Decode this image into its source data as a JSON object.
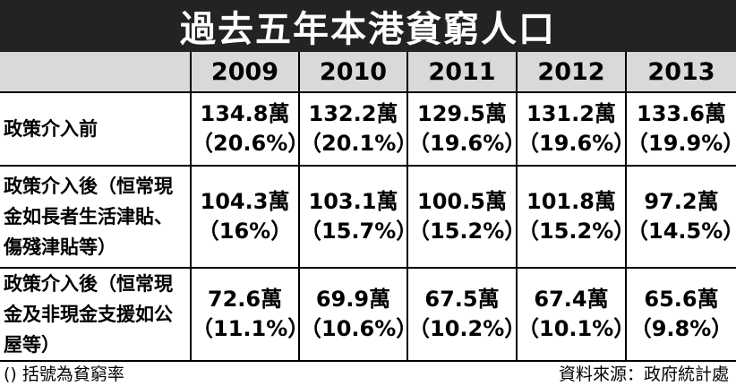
{
  "title": "過去五年本港貧窮人口",
  "table": {
    "years": [
      "2009",
      "2010",
      "2011",
      "2012",
      "2013"
    ],
    "rows": [
      {
        "label": "政策介入前",
        "cells": [
          {
            "value": "134.8萬",
            "pct": "（20.6%）"
          },
          {
            "value": "132.2萬",
            "pct": "（20.1%）"
          },
          {
            "value": "129.5萬",
            "pct": "（19.6%）"
          },
          {
            "value": "131.2萬",
            "pct": "（19.6%）"
          },
          {
            "value": "133.6萬",
            "pct": "（19.9%）"
          }
        ]
      },
      {
        "label": "政策介入後（恒常現金如長者生活津貼、傷殘津貼等）",
        "cells": [
          {
            "value": "104.3萬",
            "pct": "（16%）"
          },
          {
            "value": "103.1萬",
            "pct": "（15.7%）"
          },
          {
            "value": "100.5萬",
            "pct": "（15.2%）"
          },
          {
            "value": "101.8萬",
            "pct": "（15.2%）"
          },
          {
            "value": "97.2萬",
            "pct": "（14.5%）"
          }
        ]
      },
      {
        "label": "政策介入後（恒常現金及非現金支援如公屋等）",
        "cells": [
          {
            "value": "72.6萬",
            "pct": "（11.1%）"
          },
          {
            "value": "69.9萬",
            "pct": "（10.6%）"
          },
          {
            "value": "67.5萬",
            "pct": "（10.2%）"
          },
          {
            "value": "67.4萬",
            "pct": "（10.1%）"
          },
          {
            "value": "65.6萬",
            "pct": "（9.8%）"
          }
        ]
      }
    ]
  },
  "footer": {
    "note": "() 括號為貧窮率",
    "source": "資料來源：政府統計處"
  }
}
